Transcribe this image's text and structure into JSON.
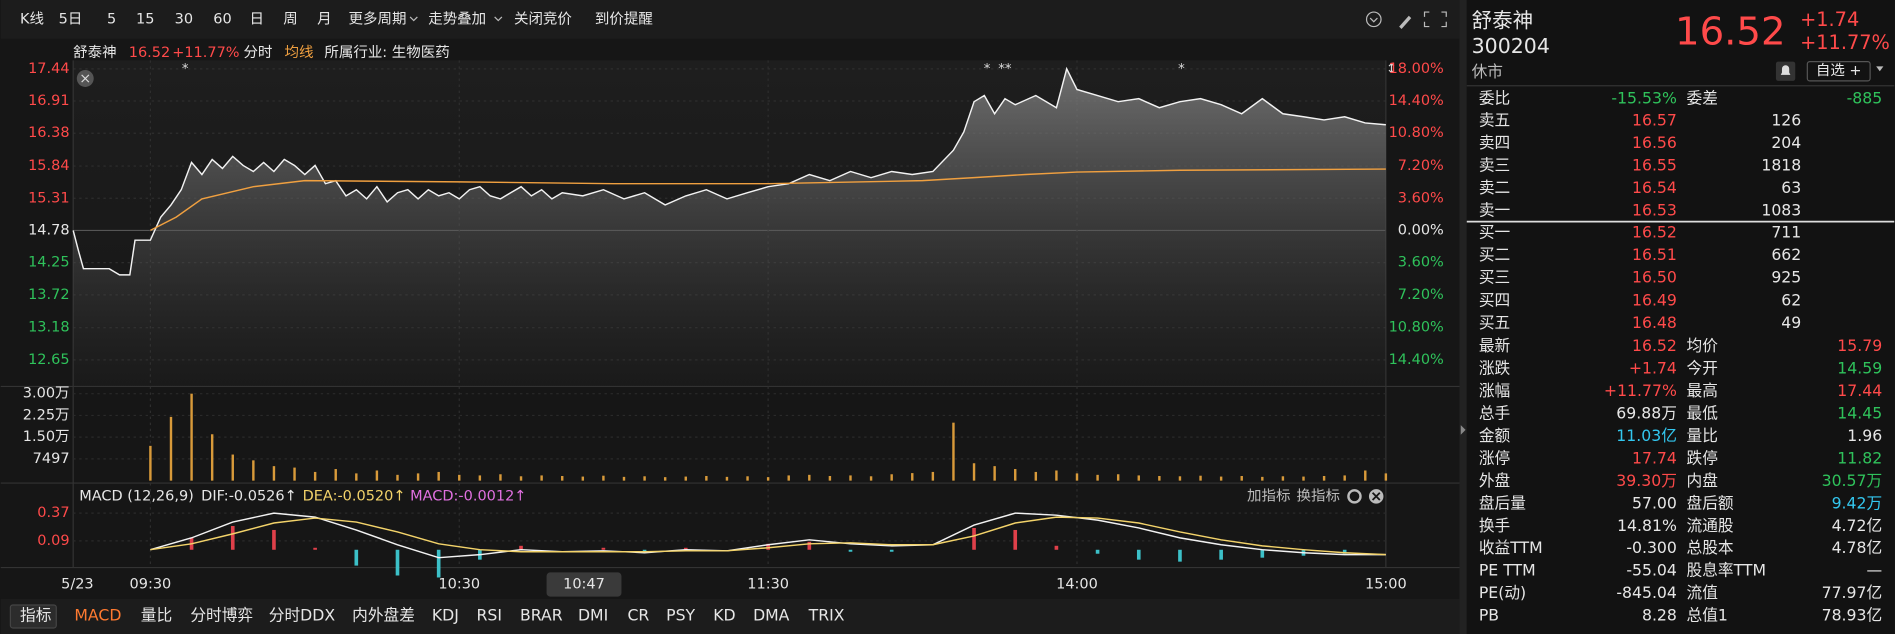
{
  "toolbar": [
    "K线",
    "5日",
    "5",
    "15",
    "30",
    "60",
    "日",
    "周",
    "月",
    "更多周期",
    "走势叠加",
    "关闭竞价",
    "到价提醒"
  ],
  "info": {
    "name": "舒泰神",
    "price": "16.52",
    "change_pct": "+11.77%",
    "mode": "分时",
    "avg_label": "均线",
    "industry": "所属行业: 生物医药"
  },
  "price_chart": {
    "xlim": [
      -15,
      240
    ],
    "ylim": [
      12.65,
      17.44
    ],
    "yticks": [
      17.44,
      16.91,
      16.38,
      15.84,
      15.31,
      14.78,
      14.25,
      13.72,
      13.18,
      12.65
    ],
    "pct_labels": [
      "18.00%",
      "14.40%",
      "10.80%",
      "7.20%",
      "3.60%",
      "0.00%",
      "3.60%",
      "7.20%",
      "10.80%",
      "14.40%"
    ],
    "time_labels": [
      {
        "value": -15,
        "label": "5/23"
      },
      {
        "value": 0,
        "label": "09:30"
      },
      {
        "value": 60,
        "label": "10:30"
      },
      {
        "value": 120,
        "label": "11:30"
      },
      {
        "value": 180,
        "label": "14:00"
      },
      {
        "value": 240,
        "label": "15:00"
      }
    ],
    "cursor_time": "10:47",
    "price": {
      "x": [
        -15,
        -14,
        -13,
        -8,
        -6,
        -4,
        -3,
        0,
        2,
        4,
        6,
        8,
        10,
        12,
        14,
        16,
        18,
        20,
        22,
        24,
        26,
        28,
        30,
        32,
        34,
        36,
        38,
        40,
        42,
        44,
        46,
        48,
        50,
        52,
        54,
        56,
        58,
        60,
        62,
        64,
        66,
        68,
        70,
        72,
        74,
        76,
        78,
        80,
        84,
        88,
        92,
        96,
        100,
        104,
        108,
        112,
        116,
        120,
        124,
        128,
        132,
        136,
        140,
        144,
        148,
        152,
        156,
        158,
        160,
        162,
        164,
        166,
        168,
        172,
        176,
        178,
        180,
        184,
        188,
        192,
        196,
        200,
        204,
        208,
        212,
        216,
        220,
        224,
        228,
        232,
        236,
        240
      ],
      "values": [
        14.78,
        14.45,
        14.15,
        14.15,
        14.05,
        14.05,
        14.62,
        14.62,
        15.0,
        15.2,
        15.45,
        15.9,
        15.7,
        15.95,
        15.8,
        16.0,
        15.85,
        15.75,
        15.9,
        15.75,
        15.95,
        15.85,
        15.7,
        15.85,
        15.55,
        15.6,
        15.35,
        15.45,
        15.3,
        15.5,
        15.25,
        15.4,
        15.45,
        15.3,
        15.45,
        15.35,
        15.4,
        15.3,
        15.45,
        15.5,
        15.35,
        15.3,
        15.4,
        15.5,
        15.35,
        15.45,
        15.3,
        15.4,
        15.35,
        15.45,
        15.3,
        15.4,
        15.2,
        15.35,
        15.45,
        15.3,
        15.4,
        15.5,
        15.55,
        15.7,
        15.6,
        15.75,
        15.65,
        15.75,
        15.7,
        15.75,
        16.1,
        16.4,
        16.9,
        17.0,
        16.7,
        16.95,
        16.85,
        17.0,
        16.8,
        17.44,
        17.1,
        17.0,
        16.9,
        16.95,
        16.8,
        16.9,
        16.95,
        16.85,
        16.7,
        16.95,
        16.7,
        16.65,
        16.6,
        16.65,
        16.55,
        16.52
      ]
    },
    "avg": {
      "x": [
        0,
        5,
        10,
        20,
        30,
        60,
        90,
        120,
        150,
        160,
        170,
        180,
        200,
        240
      ],
      "values": [
        14.78,
        15.0,
        15.3,
        15.5,
        15.6,
        15.58,
        15.55,
        15.55,
        15.6,
        15.65,
        15.7,
        15.74,
        15.77,
        15.79
      ]
    }
  },
  "volume_chart": {
    "ylim": [
      0,
      30000
    ],
    "yticks": [
      {
        "value": 30000,
        "label": "3.00万"
      },
      {
        "value": 22500,
        "label": "2.25万"
      },
      {
        "value": 15000,
        "label": "1.50万"
      },
      7497
    ],
    "x": [
      0,
      4,
      8,
      12,
      16,
      20,
      24,
      28,
      32,
      36,
      40,
      44,
      48,
      52,
      56,
      60,
      64,
      68,
      72,
      76,
      80,
      84,
      88,
      92,
      96,
      100,
      104,
      108,
      112,
      116,
      120,
      124,
      128,
      132,
      136,
      140,
      144,
      148,
      152,
      156,
      160,
      164,
      168,
      172,
      176,
      180,
      184,
      188,
      192,
      196,
      200,
      204,
      208,
      212,
      216,
      220,
      224,
      228,
      232,
      236,
      240
    ],
    "values": [
      12000,
      22000,
      30000,
      16000,
      9000,
      7000,
      5000,
      4500,
      3000,
      4000,
      2500,
      3500,
      2000,
      2500,
      3000,
      2000,
      1800,
      2200,
      1500,
      1800,
      1600,
      1400,
      1700,
      1300,
      1500,
      1200,
      1400,
      1600,
      1300,
      1500,
      1200,
      1800,
      2000,
      1600,
      1800,
      1500,
      2200,
      2600,
      3000,
      20000,
      6000,
      5000,
      4000,
      3000,
      3500,
      2500,
      2000,
      2200,
      1800,
      1600,
      1500,
      1700,
      1400,
      1600,
      1300,
      1500,
      1400,
      1600,
      1800,
      3500,
      2500
    ]
  },
  "macd_chart": {
    "title": "MACD (12,26,9)",
    "dif_label": "DIF:-0.0526↑",
    "dea_label": "DEA:-0.0520↑",
    "macd_label": "MACD:-0.0012↑",
    "buttons": [
      "加指标",
      "换指标"
    ],
    "ylim": [
      -0.18,
      0.43
    ],
    "yticks": [
      0.37,
      0.09
    ],
    "x": [
      0,
      8,
      16,
      24,
      32,
      40,
      48,
      56,
      64,
      72,
      80,
      88,
      96,
      104,
      112,
      120,
      128,
      136,
      144,
      152,
      160,
      168,
      176,
      184,
      192,
      200,
      208,
      216,
      224,
      232,
      240
    ],
    "dif": [
      0.0,
      0.12,
      0.28,
      0.37,
      0.33,
      0.2,
      0.05,
      -0.08,
      -0.05,
      0.0,
      -0.02,
      -0.01,
      -0.03,
      0.0,
      -0.01,
      0.05,
      0.1,
      0.06,
      0.04,
      0.05,
      0.25,
      0.37,
      0.35,
      0.3,
      0.22,
      0.12,
      0.05,
      0.0,
      -0.03,
      -0.05,
      -0.05
    ],
    "dea": [
      0.0,
      0.06,
      0.16,
      0.27,
      0.32,
      0.28,
      0.18,
      0.06,
      0.0,
      -0.02,
      -0.02,
      -0.02,
      -0.02,
      -0.01,
      -0.01,
      0.02,
      0.06,
      0.07,
      0.05,
      0.05,
      0.14,
      0.27,
      0.33,
      0.32,
      0.27,
      0.18,
      0.1,
      0.04,
      0.0,
      -0.03,
      -0.05
    ],
    "hist": [
      0,
      0.12,
      0.24,
      0.2,
      0.02,
      -0.16,
      -0.26,
      -0.28,
      -0.1,
      0.04,
      0,
      0.02,
      -0.02,
      0.02,
      0,
      0.06,
      0.08,
      -0.02,
      -0.02,
      0,
      0.22,
      0.2,
      0.04,
      -0.04,
      -0.1,
      -0.12,
      -0.1,
      -0.08,
      -0.06,
      -0.04,
      0
    ]
  },
  "tabs": [
    "指标",
    "MACD",
    "量比",
    "分时博弈",
    "分时DDX",
    "内外盘差",
    "KDJ",
    "RSI",
    "BRAR",
    "DMI",
    "CR",
    "PSY",
    "KD",
    "DMA",
    "TRIX"
  ],
  "quote": {
    "name": "舒泰神",
    "code": "300204",
    "status": "休市",
    "price": "16.52",
    "change": "+1.74",
    "change_pct": "+11.77%",
    "watch": "自选 +",
    "ratio": [
      "委比",
      "-15.53%",
      "委差",
      "-885"
    ],
    "asks": [
      [
        "卖五",
        "16.57",
        "126"
      ],
      [
        "卖四",
        "16.56",
        "204"
      ],
      [
        "卖三",
        "16.55",
        "1818"
      ],
      [
        "卖二",
        "16.54",
        "63"
      ],
      [
        "卖一",
        "16.53",
        "1083"
      ]
    ],
    "bids": [
      [
        "买一",
        "16.52",
        "711"
      ],
      [
        "买二",
        "16.51",
        "662"
      ],
      [
        "买三",
        "16.50",
        "925"
      ],
      [
        "买四",
        "16.49",
        "62"
      ],
      [
        "买五",
        "16.48",
        "49"
      ]
    ],
    "stats": [
      [
        "最新",
        "16.52",
        "均价",
        "15.79"
      ],
      [
        "涨跌",
        "+1.74",
        "今开",
        "14.59"
      ],
      [
        "涨幅",
        "+11.77%",
        "最高",
        "17.44"
      ],
      [
        "总手",
        "69.88万",
        "最低",
        "14.45"
      ],
      [
        "金额",
        "11.03亿",
        "量比",
        "1.96"
      ],
      [
        "涨停",
        "17.74",
        "跌停",
        "11.82"
      ],
      [
        "外盘",
        "39.30万",
        "内盘",
        "30.57万"
      ],
      [
        "盘后量",
        "57.00",
        "盘后额",
        "9.42万"
      ],
      [
        "换手",
        "14.81%",
        "流通股",
        "4.72亿"
      ],
      [
        "收益TTM",
        "-0.300",
        "总股本",
        "4.78亿"
      ],
      [
        "PE TTM",
        "-55.04",
        "股息率TTM",
        "—"
      ],
      [
        "PE(动)",
        "-845.04",
        "流值",
        "77.97亿"
      ],
      [
        "PB",
        "8.28",
        "总值1",
        "78.93亿"
      ]
    ]
  }
}
